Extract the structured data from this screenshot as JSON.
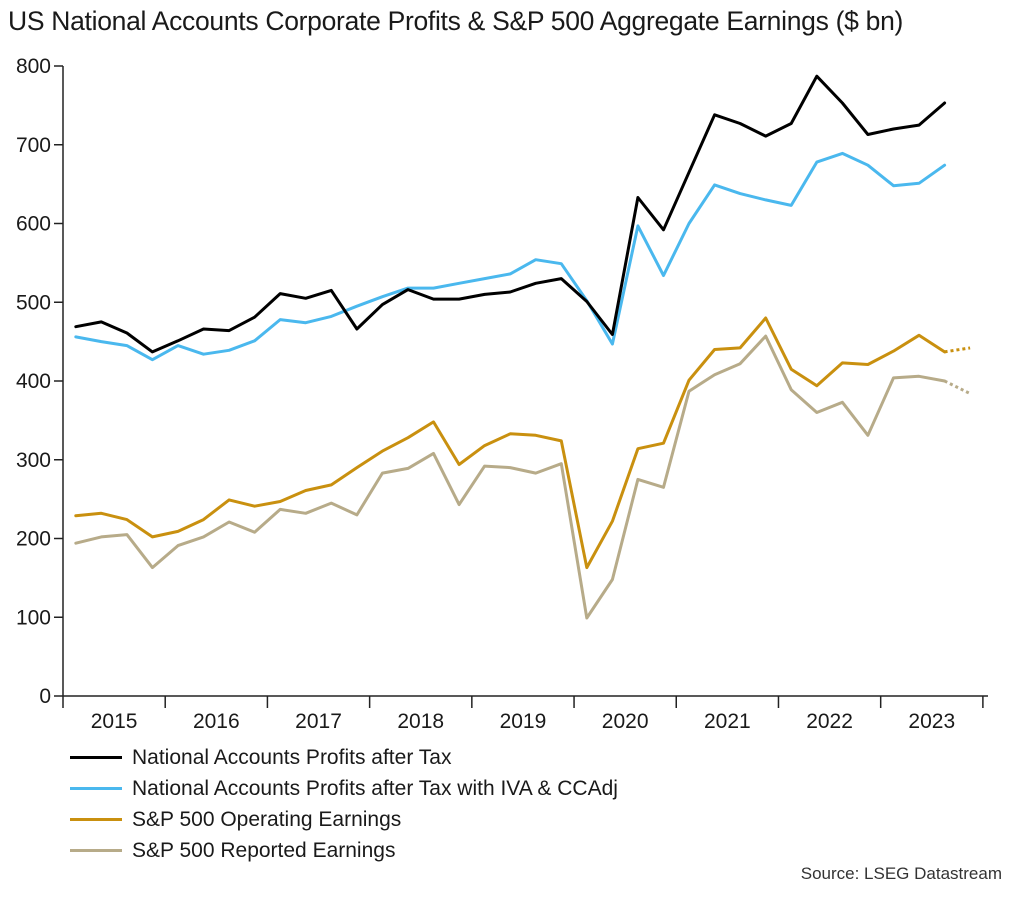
{
  "title": "US National Accounts Corporate Profits & S&P 500 Aggregate Earnings ($ bn)",
  "source": "Source: LSEG Datastream",
  "chart_data": {
    "type": "line",
    "title": "US National Accounts Corporate Profits & S&P 500 Aggregate Earnings ($ bn)",
    "xlabel": "",
    "ylabel": "$ bn",
    "ylim": [
      0,
      800
    ],
    "yticks": [
      0,
      100,
      200,
      300,
      400,
      500,
      600,
      700,
      800
    ],
    "xlim": [
      0,
      36.2
    ],
    "year_labels": [
      "2015",
      "2016",
      "2017",
      "2018",
      "2019",
      "2020",
      "2021",
      "2022",
      "2023"
    ],
    "legend_position": "bottom-left",
    "grid": false,
    "series": [
      {
        "name": "National Accounts Profits after Tax",
        "color": "#000000",
        "values": [
          469,
          475,
          461,
          437,
          451,
          466,
          464,
          481,
          511,
          505,
          515,
          466,
          497,
          516,
          504,
          504,
          510,
          513,
          524,
          530,
          501,
          459,
          633,
          592,
          665,
          738,
          727,
          711,
          727,
          787,
          753,
          713,
          720,
          725,
          753
        ],
        "projection": []
      },
      {
        "name": "National Accounts Profits after Tax with IVA & CCAdj",
        "color": "#4ab8ee",
        "values": [
          456,
          450,
          445,
          427,
          445,
          434,
          439,
          451,
          478,
          474,
          482,
          495,
          507,
          518,
          518,
          524,
          530,
          536,
          554,
          549,
          502,
          447,
          597,
          534,
          600,
          649,
          638,
          630,
          623,
          678,
          689,
          674,
          648,
          651,
          674
        ],
        "projection": []
      },
      {
        "name": "S&P 500 Operating Earnings",
        "color": "#c9900f",
        "values": [
          229,
          232,
          224,
          202,
          209,
          224,
          249,
          241,
          247,
          261,
          268,
          290,
          311,
          328,
          348,
          294,
          318,
          333,
          331,
          324,
          163,
          222,
          314,
          321,
          401,
          440,
          442,
          480,
          415,
          394,
          423,
          421,
          438,
          458,
          437
        ],
        "projection": [
          437,
          442
        ]
      },
      {
        "name": "S&P 500 Reported Earnings",
        "color": "#b7ab89",
        "values": [
          194,
          202,
          205,
          163,
          191,
          202,
          221,
          208,
          237,
          232,
          245,
          230,
          283,
          289,
          308,
          243,
          292,
          290,
          283,
          295,
          99,
          148,
          275,
          265,
          387,
          408,
          422,
          457,
          389,
          360,
          373,
          331,
          404,
          406,
          400
        ],
        "projection": [
          400,
          384
        ]
      }
    ]
  }
}
